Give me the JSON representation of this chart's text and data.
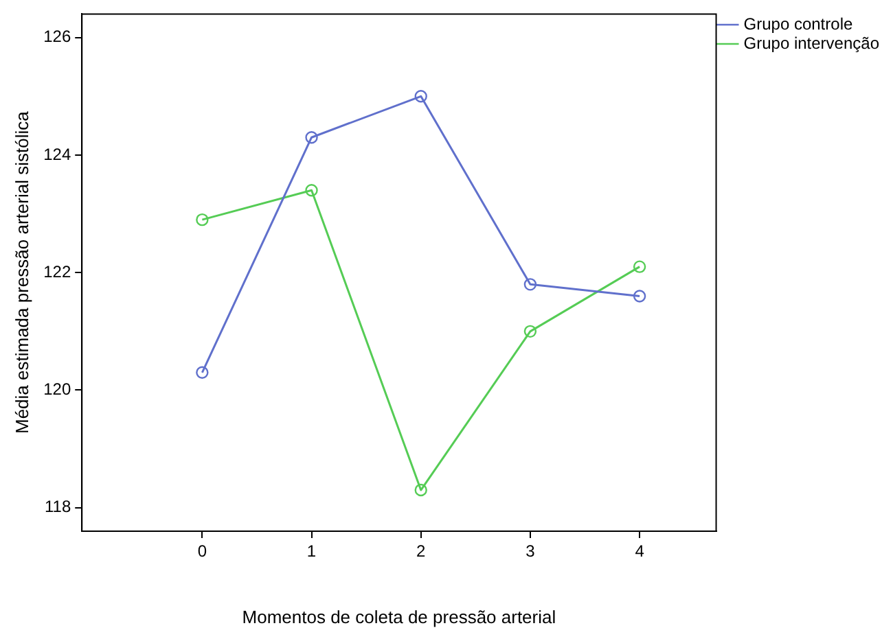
{
  "chart_data": {
    "type": "line",
    "xlabel": "Momentos de coleta de pressão arterial",
    "ylabel": "Média estimada pressão arterial sistólica",
    "x": [
      0,
      1,
      2,
      3,
      4
    ],
    "xlim": [
      -1.1,
      4.7
    ],
    "xticks": [
      0,
      1,
      2,
      3,
      4
    ],
    "ylim": [
      117.6,
      126.4
    ],
    "yticks": [
      118,
      120,
      122,
      124,
      126
    ],
    "legend": "top right",
    "marker": "circle",
    "line_style": "solid",
    "series": [
      {
        "name": "Grupo controle",
        "color": "#6070cc",
        "values": [
          120.3,
          124.3,
          125.0,
          121.8,
          121.6
        ]
      },
      {
        "name": "Grupo intervenção",
        "color": "#55cc55",
        "values": [
          122.9,
          123.4,
          118.3,
          121.0,
          122.1
        ]
      }
    ]
  }
}
